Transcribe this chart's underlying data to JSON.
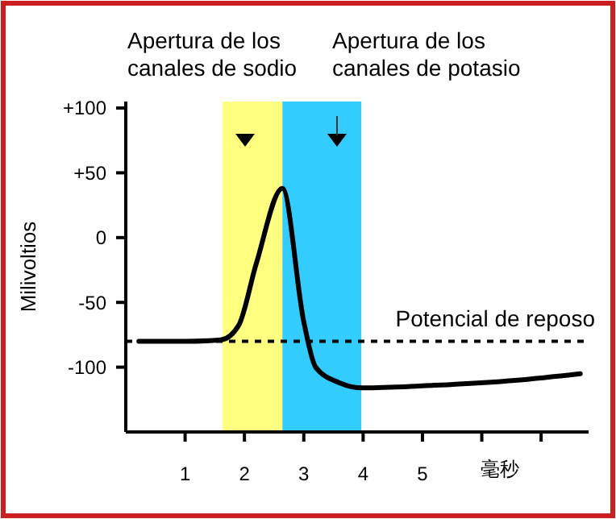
{
  "chart_data": {
    "type": "line",
    "xlabel": "毫秒",
    "ylabel": "Milivoltios",
    "x": [
      0.22,
      1.0,
      1.6,
      1.9,
      2.2,
      2.64,
      3.0,
      3.2,
      3.6,
      4.0,
      5.2,
      6.6,
      7.66
    ],
    "series": [
      {
        "color": "#000000",
        "values": [
          -80,
          -80,
          -79,
          -68,
          -20,
          38,
          -65,
          -100,
          -112,
          -116,
          -114,
          -110,
          -105
        ]
      }
    ],
    "xlim": [
      0,
      7.8
    ],
    "ylim": [
      -150,
      105
    ],
    "xticks": [
      1,
      2,
      3,
      4,
      5,
      {
        "value": 6,
        "label": null
      },
      {
        "value": 7,
        "label": null
      }
    ],
    "yticks": [
      {
        "value": 100,
        "label": "+100"
      },
      {
        "value": 50,
        "label": "+50"
      },
      0,
      -50,
      -100
    ],
    "bands": [
      {
        "axis": "x",
        "from": 1.63,
        "to": 2.64,
        "label": "Apertura de los canales de sodio",
        "color": "#ffff80"
      },
      {
        "axis": "x",
        "from": 2.64,
        "to": 3.97,
        "label": "Apertura de los canales de potasio",
        "color": "#33ccff"
      }
    ],
    "ref_lines": [
      {
        "axis": "y",
        "value": -80,
        "label": "Potencial de reposo",
        "color": "#000000",
        "line_style": "dashed"
      }
    ],
    "grid": false,
    "marker": "none",
    "line_style": "solid"
  }
}
